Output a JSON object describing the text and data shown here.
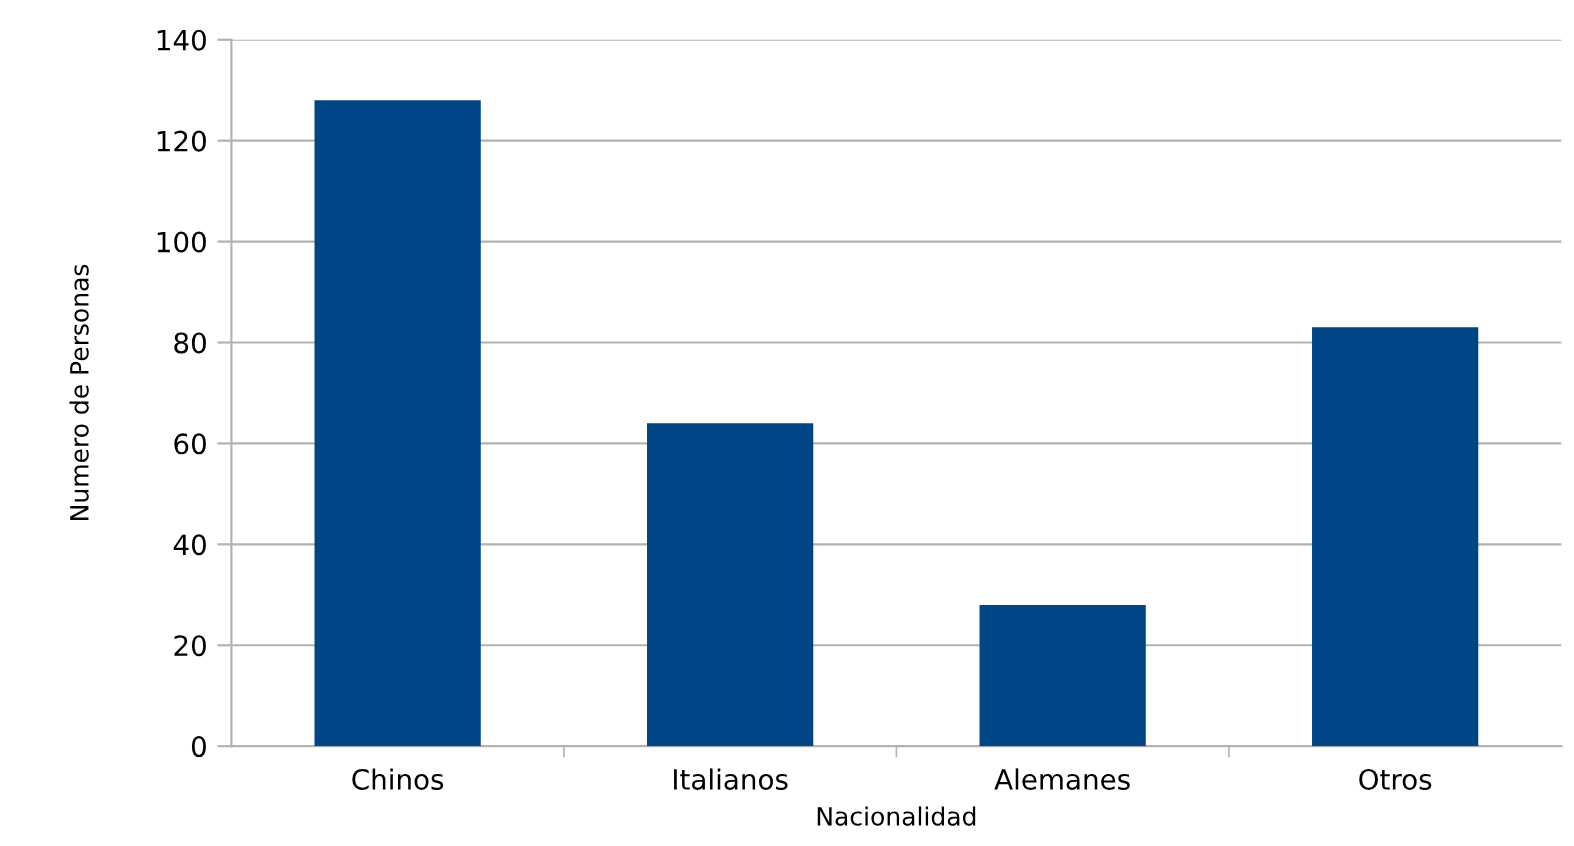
{
  "chart_data": {
    "type": "bar",
    "xlabel": "Nacionalidad",
    "ylabel": "Numero de Personas",
    "categories": [
      "Chinos",
      "Italianos",
      "Alemanes",
      "Otros"
    ],
    "values": [
      128,
      64,
      28,
      83
    ],
    "color": "#004586",
    "ylim": [
      0,
      140
    ],
    "yticks": [
      0,
      20,
      40,
      60,
      80,
      100,
      120,
      140
    ],
    "grid": "y"
  }
}
